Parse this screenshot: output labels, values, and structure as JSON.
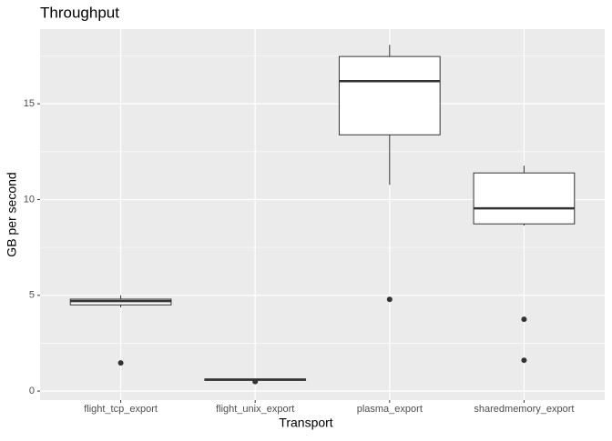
{
  "chart_data": {
    "type": "box",
    "title": "Throughput",
    "x_label": "Transport",
    "y_label": "GB per second",
    "categories": [
      "flight_tcp_export",
      "flight_unix_export",
      "plasma_export",
      "sharedmemory_export"
    ],
    "boxes": [
      {
        "min": 4.37,
        "q1": 4.5,
        "median": 4.7,
        "q3": 4.8,
        "max": 5.0,
        "outliers": [
          1.47
        ]
      },
      {
        "min": 0.55,
        "q1": 0.56,
        "median": 0.6,
        "q3": 0.63,
        "max": 0.65,
        "outliers": [
          0.5
        ]
      },
      {
        "min": 10.77,
        "q1": 13.38,
        "median": 16.18,
        "q3": 17.47,
        "max": 18.08,
        "outliers": [
          4.79
        ]
      },
      {
        "min": 8.64,
        "q1": 8.73,
        "median": 9.54,
        "q3": 11.39,
        "max": 11.77,
        "outliers": [
          3.75,
          1.61
        ]
      }
    ],
    "color": "#333333",
    "box_fill": "#ffffff",
    "panel_color": "#ebebeb",
    "ylim": [
      -0.47,
      18.9
    ],
    "yticks": [
      0,
      5,
      10,
      15
    ],
    "minor_yticks": [
      2.5,
      7.5,
      12.5,
      17.5
    ],
    "grid": true
  }
}
